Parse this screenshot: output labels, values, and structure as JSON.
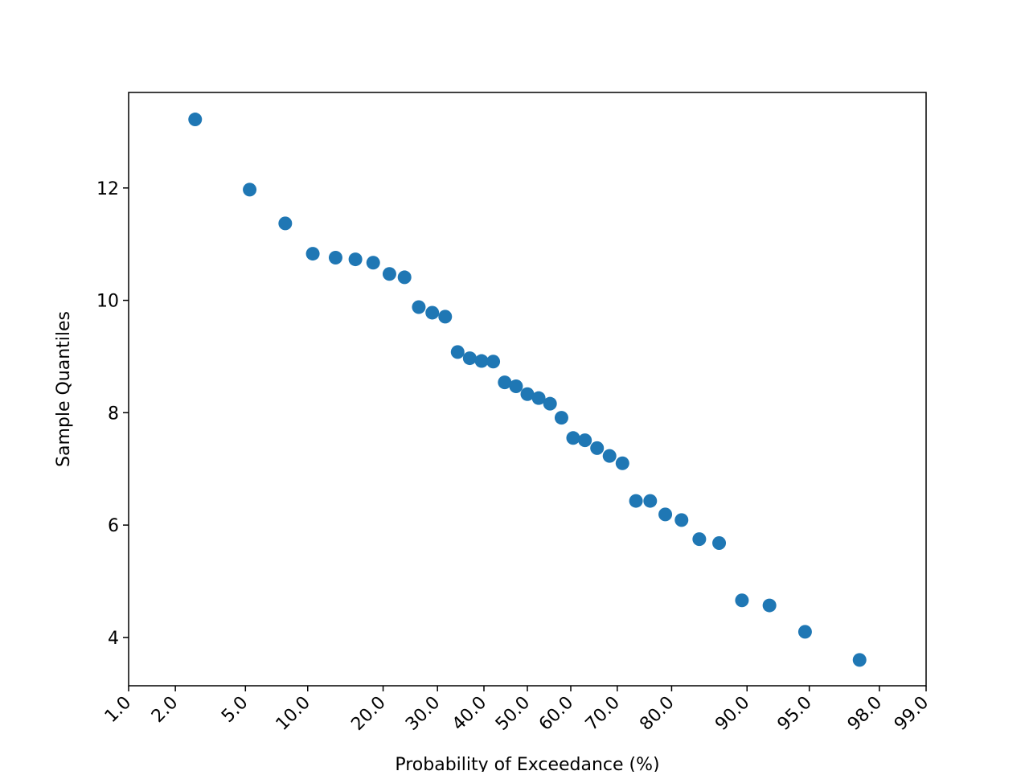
{
  "chart_data": {
    "type": "scatter",
    "scale": "probability",
    "x_label": "Probability of Exceedance (%)",
    "y_label": "Sample Quantiles",
    "color": "#1f77b4",
    "x": [
      2.63,
      5.26,
      7.89,
      10.53,
      13.16,
      15.79,
      18.42,
      21.05,
      23.68,
      26.32,
      28.95,
      31.58,
      34.21,
      36.84,
      39.47,
      42.11,
      44.74,
      47.37,
      50,
      52.63,
      55.26,
      57.89,
      60.53,
      63.16,
      65.79,
      68.42,
      71.05,
      73.68,
      76.32,
      78.95,
      81.58,
      84.21,
      86.84,
      89.47,
      92.11,
      94.74,
      97.37
    ],
    "values": [
      13.22,
      11.97,
      11.37,
      10.83,
      10.76,
      10.73,
      10.67,
      10.47,
      10.41,
      9.88,
      9.78,
      9.71,
      9.08,
      8.97,
      8.92,
      8.91,
      8.54,
      8.47,
      8.33,
      8.26,
      8.16,
      7.91,
      7.55,
      7.51,
      7.37,
      7.23,
      7.1,
      6.43,
      6.43,
      6.19,
      6.09,
      5.75,
      5.68,
      4.66,
      4.57,
      4.1,
      3.6
    ],
    "xlim": [
      1,
      99
    ],
    "ylim": [
      3.14,
      13.7
    ],
    "xticks": [
      {
        "value": 1,
        "label": "1.0"
      },
      {
        "value": 2,
        "label": "2.0"
      },
      {
        "value": 5,
        "label": "5.0"
      },
      {
        "value": 10,
        "label": "10.0"
      },
      {
        "value": 20,
        "label": "20.0"
      },
      {
        "value": 30,
        "label": "30.0"
      },
      {
        "value": 40,
        "label": "40.0"
      },
      {
        "value": 50,
        "label": "50.0"
      },
      {
        "value": 60,
        "label": "60.0"
      },
      {
        "value": 70,
        "label": "70.0"
      },
      {
        "value": 80,
        "label": "80.0"
      },
      {
        "value": 90,
        "label": "90.0"
      },
      {
        "value": 95,
        "label": "95.0"
      },
      {
        "value": 98,
        "label": "98.0"
      },
      {
        "value": 99,
        "label": "99.0"
      }
    ],
    "yticks": [
      4,
      6,
      8,
      10,
      12
    ]
  }
}
